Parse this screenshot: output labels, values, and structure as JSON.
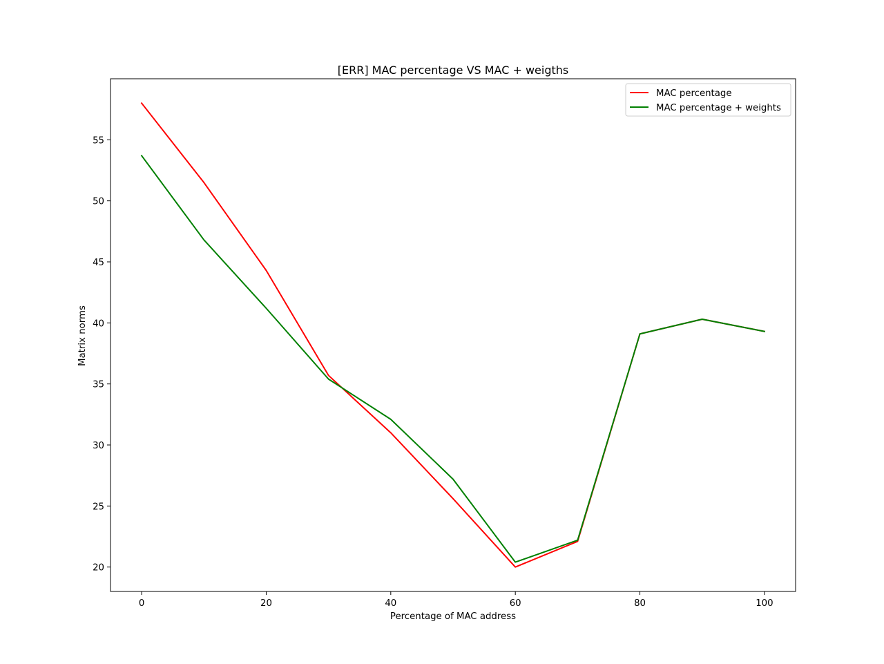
{
  "chart_data": {
    "type": "line",
    "title": "[ERR] MAC percentage VS MAC + weigths",
    "xlabel": "Percentage of MAC address",
    "ylabel": "Matrix norms",
    "xlim": [
      -5,
      105
    ],
    "ylim": [
      18,
      60
    ],
    "xticks": [
      0,
      20,
      40,
      60,
      80,
      100
    ],
    "yticks": [
      20,
      25,
      30,
      35,
      40,
      45,
      50,
      55
    ],
    "grid": false,
    "legend_position": "upper right",
    "x": [
      0,
      10,
      20,
      30,
      40,
      50,
      60,
      70,
      80,
      90,
      100
    ],
    "series": [
      {
        "name": "MAC percentage",
        "color": "#ff0000",
        "values": [
          58.0,
          51.5,
          44.3,
          35.7,
          31.0,
          25.6,
          20.0,
          22.1,
          39.1,
          40.3,
          39.3
        ]
      },
      {
        "name": "MAC percentage + weights",
        "color": "#008000",
        "values": [
          53.7,
          46.8,
          41.2,
          35.4,
          32.1,
          27.2,
          20.4,
          22.2,
          39.1,
          40.3,
          39.3
        ]
      }
    ]
  }
}
